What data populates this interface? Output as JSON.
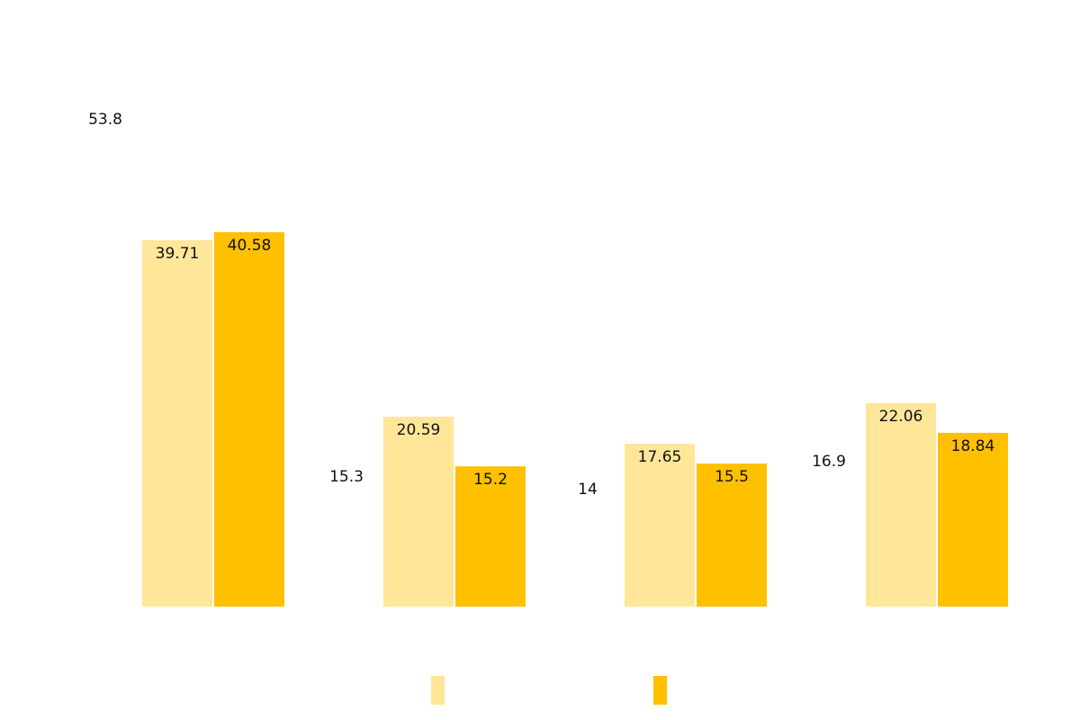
{
  "chart_data": {
    "type": "bar",
    "categories": [
      "",
      "",
      "",
      ""
    ],
    "series": [
      {
        "values": [
          39.71,
          20.59,
          17.65,
          22.06
        ],
        "color": "#FFE699"
      },
      {
        "values": [
          40.58,
          15.2,
          15.5,
          18.84
        ],
        "color": "#FFC000"
      }
    ],
    "extra_labels": [
      "53.8",
      "15.3",
      "14",
      "16.9"
    ],
    "ylim": [
      0,
      53.8
    ],
    "grid": false,
    "legend": "bottom"
  }
}
